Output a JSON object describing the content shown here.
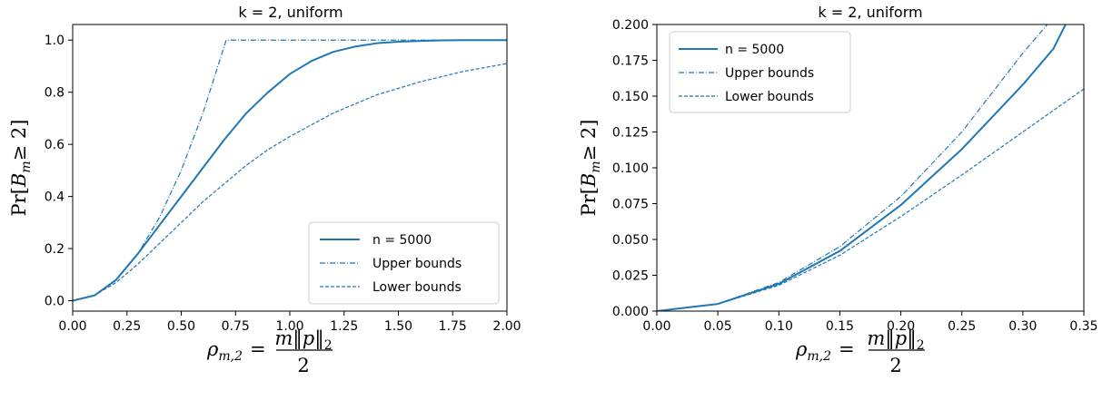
{
  "chart_data": [
    {
      "type": "line",
      "title": "k = 2, uniform",
      "xlabel": {
        "lhs": "ρ",
        "lhs_sub": "m,2",
        "eq": "=",
        "num": "m‖p‖",
        "num_sub": "2",
        "den": "2"
      },
      "ylabel": {
        "pre": "Pr[",
        "var": "B",
        "sub": "m",
        "post": "≥ 2]"
      },
      "xlim": [
        0,
        2.0
      ],
      "ylim": [
        -0.04,
        1.06
      ],
      "xticks": [
        0,
        0.25,
        0.5,
        0.75,
        1.0,
        1.25,
        1.5,
        1.75,
        2.0
      ],
      "xtick_labels": [
        "0.00",
        "0.25",
        "0.50",
        "0.75",
        "1.00",
        "1.25",
        "1.50",
        "1.75",
        "2.00"
      ],
      "yticks": [
        0,
        0.2,
        0.4,
        0.6,
        0.8,
        1.0
      ],
      "ytick_labels": [
        "0.0",
        "0.2",
        "0.4",
        "0.6",
        "0.8",
        "1.0"
      ],
      "grid": false,
      "legend_position": "lower-right",
      "color": "#1f77b4",
      "series": [
        {
          "name": "n = 5000",
          "style": "solid",
          "x": [
            0,
            0.1,
            0.2,
            0.3,
            0.4,
            0.5,
            0.6,
            0.7,
            0.8,
            0.9,
            1.0,
            1.1,
            1.2,
            1.3,
            1.4,
            1.5,
            1.6,
            1.7,
            1.8,
            2.0
          ],
          "y": [
            0,
            0.02,
            0.08,
            0.18,
            0.29,
            0.4,
            0.51,
            0.62,
            0.72,
            0.8,
            0.87,
            0.92,
            0.955,
            0.975,
            0.988,
            0.994,
            0.997,
            0.999,
            1.0,
            1.0
          ]
        },
        {
          "name": "Upper bounds",
          "style": "dashdot",
          "x": [
            0,
            0.1,
            0.2,
            0.3,
            0.4,
            0.5,
            0.6,
            0.707,
            1.0,
            2.0
          ],
          "y": [
            0,
            0.02,
            0.08,
            0.18,
            0.32,
            0.5,
            0.72,
            1.0,
            1.0,
            1.0
          ]
        },
        {
          "name": "Lower bounds",
          "style": "dashed",
          "x": [
            0,
            0.1,
            0.2,
            0.3,
            0.4,
            0.5,
            0.6,
            0.7,
            0.8,
            0.9,
            1.0,
            1.2,
            1.4,
            1.6,
            1.8,
            2.0
          ],
          "y": [
            0,
            0.02,
            0.07,
            0.14,
            0.22,
            0.3,
            0.38,
            0.45,
            0.52,
            0.58,
            0.63,
            0.72,
            0.79,
            0.84,
            0.88,
            0.91
          ]
        }
      ]
    },
    {
      "type": "line",
      "title": "k = 2, uniform",
      "xlabel": {
        "lhs": "ρ",
        "lhs_sub": "m,2",
        "eq": "=",
        "num": "m‖p‖",
        "num_sub": "2",
        "den": "2"
      },
      "ylabel": {
        "pre": "Pr[",
        "var": "B",
        "sub": "m",
        "post": "≥ 2]"
      },
      "xlim": [
        0,
        0.35
      ],
      "ylim": [
        0,
        0.2
      ],
      "xticks": [
        0,
        0.05,
        0.1,
        0.15,
        0.2,
        0.25,
        0.3,
        0.35
      ],
      "xtick_labels": [
        "0.00",
        "0.05",
        "0.10",
        "0.15",
        "0.20",
        "0.25",
        "0.30",
        "0.35"
      ],
      "yticks": [
        0,
        0.025,
        0.05,
        0.075,
        0.1,
        0.125,
        0.15,
        0.175,
        0.2
      ],
      "ytick_labels": [
        "0.000",
        "0.025",
        "0.050",
        "0.075",
        "0.100",
        "0.125",
        "0.150",
        "0.175",
        "0.200"
      ],
      "grid": false,
      "legend_position": "upper-left",
      "color": "#1f77b4",
      "series": [
        {
          "name": "n = 5000",
          "style": "solid",
          "x": [
            0,
            0.05,
            0.1,
            0.15,
            0.2,
            0.25,
            0.3,
            0.325,
            0.335
          ],
          "y": [
            0,
            0.005,
            0.019,
            0.042,
            0.074,
            0.113,
            0.158,
            0.183,
            0.2
          ]
        },
        {
          "name": "Upper bounds",
          "style": "dashdot",
          "x": [
            0,
            0.05,
            0.1,
            0.15,
            0.2,
            0.25,
            0.3,
            0.32
          ],
          "y": [
            0,
            0.005,
            0.02,
            0.045,
            0.08,
            0.125,
            0.18,
            0.2
          ]
        },
        {
          "name": "Lower bounds",
          "style": "dashed",
          "x": [
            0,
            0.05,
            0.1,
            0.15,
            0.2,
            0.25,
            0.3,
            0.35
          ],
          "y": [
            0,
            0.005,
            0.018,
            0.039,
            0.066,
            0.095,
            0.125,
            0.155
          ]
        }
      ]
    }
  ]
}
